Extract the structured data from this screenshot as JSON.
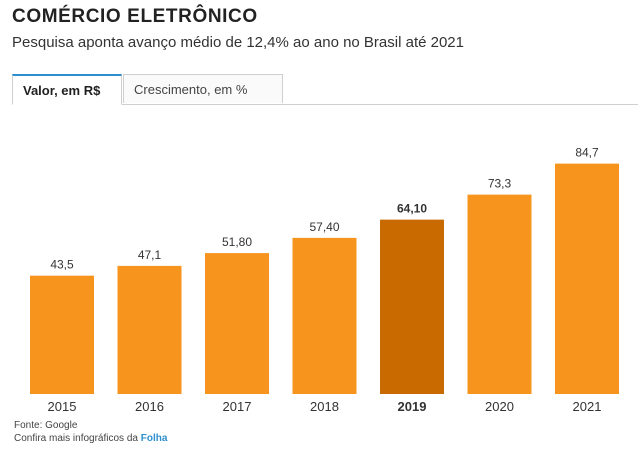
{
  "header": {
    "title": "COMÉRCIO ELETRÔNICO",
    "subtitle": "Pesquisa aponta avanço médio de 12,4% ao ano no Brasil até 2021"
  },
  "tabs": [
    {
      "label": "Valor, em R$",
      "active": true
    },
    {
      "label": "Crescimento, em %",
      "active": false
    }
  ],
  "colors": {
    "bar": "#f7941d",
    "bar_highlight": "#c96a00",
    "accent": "#2d8fcf"
  },
  "chart_data": {
    "type": "bar",
    "categories": [
      "2015",
      "2016",
      "2017",
      "2018",
      "2019",
      "2020",
      "2021"
    ],
    "values": [
      43.5,
      47.1,
      51.8,
      57.4,
      64.1,
      73.3,
      84.7
    ],
    "value_labels": [
      "43,5",
      "47,1",
      "51,80",
      "57,40",
      "64,10",
      "73,3",
      "84,7"
    ],
    "highlight_index": 4,
    "ylim": [
      0,
      90
    ],
    "grid": false,
    "title": "",
    "xlabel": "",
    "ylabel": ""
  },
  "footer": {
    "source": "Fonte: Google",
    "more_prefix": "Confira mais infográficos da ",
    "more_link": "Folha"
  }
}
